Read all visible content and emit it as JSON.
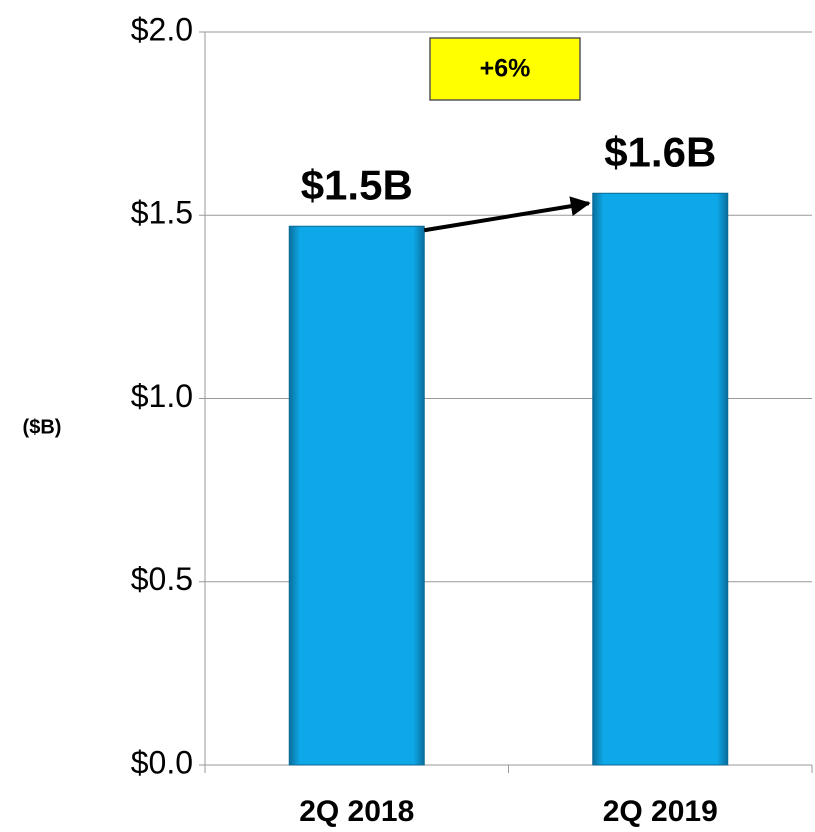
{
  "chart_data": {
    "type": "bar",
    "y_label": "($B)",
    "annotation": "+6%",
    "categories": [
      "2Q 2018",
      "2Q 2019"
    ],
    "values": [
      1.47,
      1.56
    ],
    "value_labels": [
      "$1.5B",
      "$1.6B"
    ],
    "color": "#0ea8e8",
    "ylim": [
      0,
      2
    ],
    "yticks": [
      {
        "value": 0,
        "label": "$0.0"
      },
      {
        "value": 0.5,
        "label": "$0.5"
      },
      {
        "value": 1,
        "label": "$1.0"
      },
      {
        "value": 1.5,
        "label": "$1.5"
      },
      {
        "value": 2,
        "label": "$2.0"
      }
    ],
    "grid": true
  }
}
